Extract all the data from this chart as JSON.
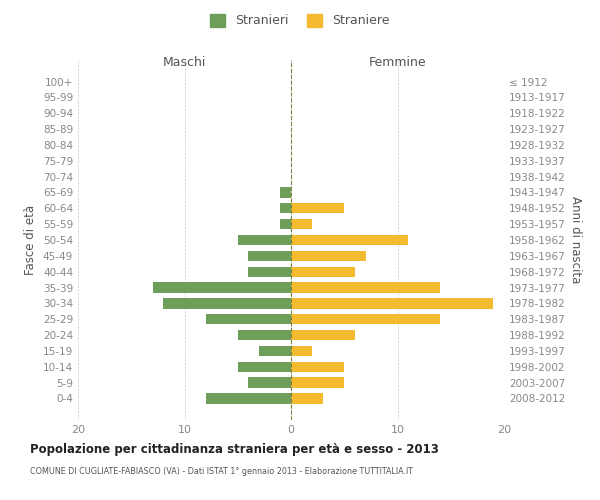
{
  "age_groups": [
    "100+",
    "95-99",
    "90-94",
    "85-89",
    "80-84",
    "75-79",
    "70-74",
    "65-69",
    "60-64",
    "55-59",
    "50-54",
    "45-49",
    "40-44",
    "35-39",
    "30-34",
    "25-29",
    "20-24",
    "15-19",
    "10-14",
    "5-9",
    "0-4"
  ],
  "birth_years": [
    "≤ 1912",
    "1913-1917",
    "1918-1922",
    "1923-1927",
    "1928-1932",
    "1933-1937",
    "1938-1942",
    "1943-1947",
    "1948-1952",
    "1953-1957",
    "1958-1962",
    "1963-1967",
    "1968-1972",
    "1973-1977",
    "1978-1982",
    "1983-1987",
    "1988-1992",
    "1993-1997",
    "1998-2002",
    "2003-2007",
    "2008-2012"
  ],
  "maschi": [
    0,
    0,
    0,
    0,
    0,
    0,
    0,
    1,
    1,
    1,
    5,
    4,
    4,
    13,
    12,
    8,
    5,
    3,
    5,
    4,
    8
  ],
  "femmine": [
    0,
    0,
    0,
    0,
    0,
    0,
    0,
    0,
    5,
    2,
    11,
    7,
    6,
    14,
    19,
    14,
    6,
    2,
    5,
    5,
    3
  ],
  "color_maschi": "#6d9e5a",
  "color_femmine": "#f5bb30",
  "title": "Popolazione per cittadinanza straniera per età e sesso - 2013",
  "subtitle": "COMUNE DI CUGLIATE-FABIASCO (VA) - Dati ISTAT 1° gennaio 2013 - Elaborazione TUTTITALIA.IT",
  "xlabel_left": "Maschi",
  "xlabel_right": "Femmine",
  "ylabel_left": "Fasce di età",
  "ylabel_right": "Anni di nascita",
  "legend_maschi": "Stranieri",
  "legend_femmine": "Straniere",
  "xlim": 20,
  "background_color": "#ffffff",
  "grid_color": "#cccccc",
  "dashed_line_color": "#808040",
  "tick_color": "#888888",
  "label_color": "#555555"
}
